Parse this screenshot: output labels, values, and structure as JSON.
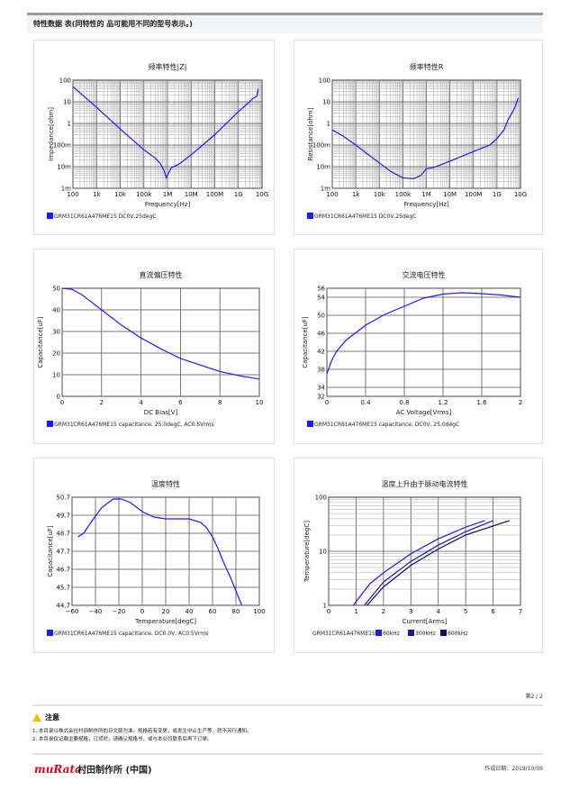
{
  "header": {
    "title": "特性数据 表(同特性的 品可能用不同的型号表示。)"
  },
  "pager": "第2 / 2",
  "notice": {
    "title": "注意",
    "items": [
      "1.  本目录以株式会社村田制作所的日文版为准。规格若有变更，或发生中止生产等，恕不另行通知。",
      "2.  本目录仅记载主要规格，订货时，请确认规格书，或与本公司联系后再下订单。"
    ]
  },
  "footer": {
    "logo": "muRata",
    "company": "村田制作所 (中国)",
    "date": "作成日期：2019/10/09"
  },
  "colors": {
    "curve": "#1a1aff",
    "s2": "#1a1aa0",
    "s3": "#0a0a60",
    "grid": "#888"
  },
  "chart_data": [
    {
      "type": "line",
      "title": "频率特性|Z|",
      "xlabel": "Frequency[Hz]",
      "ylabel": "Impedance[ohm]",
      "xscale": "log",
      "yscale": "log",
      "xlim": [
        100,
        10000000000.0
      ],
      "ylim": [
        0.001,
        100
      ],
      "xticks": [
        "100",
        "1k",
        "10k",
        "100k",
        "1M",
        "10M",
        "100M",
        "1G",
        "10G"
      ],
      "yticks": [
        "1m",
        "10m",
        "100m",
        "1",
        "10",
        "100"
      ],
      "legend": [
        "GRM31CR61A476ME15 DC0V,25degC"
      ],
      "series": [
        {
          "x": [
            100,
            1000.0,
            10000.0,
            100000.0,
            300000.0,
            500000.0,
            700000.0,
            900000.0,
            1200000.0,
            1500000.0,
            3000000.0,
            10000000.0,
            100000000.0,
            1000000000.0,
            3000000000.0,
            4000000000.0,
            6000000000.0,
            7000000000.0
          ],
          "y": [
            50,
            5.5,
            0.55,
            0.06,
            0.025,
            0.014,
            0.007,
            0.003,
            0.006,
            0.009,
            0.013,
            0.035,
            0.3,
            3.5,
            10,
            14,
            18,
            40
          ]
        }
      ]
    },
    {
      "type": "line",
      "title": "频率特性R",
      "xlabel": "Frequency[Hz]",
      "ylabel": "Resistance[ohm]",
      "xscale": "log",
      "yscale": "log",
      "xlim": [
        100,
        10000000000.0
      ],
      "ylim": [
        0.001,
        100
      ],
      "xticks": [
        "100",
        "1k",
        "10k",
        "100k",
        "1M",
        "10M",
        "100M",
        "1G",
        "10G"
      ],
      "yticks": [
        "1m",
        "10m",
        "100m",
        "1",
        "10",
        "100"
      ],
      "legend": [
        "GRM31CR61A476ME15 DC0V,25degC"
      ],
      "series": [
        {
          "x": [
            100,
            300,
            1000.0,
            3000.0,
            10000.0,
            30000.0,
            100000.0,
            300000.0,
            600000.0,
            1000000.0,
            2000000.0,
            10000000.0,
            100000000.0,
            500000000.0,
            1000000000.0,
            2000000000.0,
            3000000000.0,
            5000000000.0,
            6000000000.0,
            8000000000.0
          ],
          "y": [
            0.5,
            0.25,
            0.1,
            0.04,
            0.015,
            0.006,
            0.003,
            0.0028,
            0.004,
            0.008,
            0.009,
            0.018,
            0.05,
            0.1,
            0.2,
            0.5,
            1.5,
            4,
            6,
            15
          ]
        }
      ]
    },
    {
      "type": "line",
      "title": "直流偏压特性",
      "xlabel": "DC Bias[V]",
      "ylabel": "Capacitance[uF]",
      "xlim": [
        0,
        10
      ],
      "ylim": [
        0,
        50
      ],
      "xticks": [
        "0",
        "2",
        "4",
        "6",
        "8",
        "10"
      ],
      "yticks": [
        "0",
        "10",
        "20",
        "30",
        "40",
        "50"
      ],
      "legend": [
        "GRM31CR61A476ME15 capacitance, 25.0degC, AC0.5Vrms"
      ],
      "series": [
        {
          "x": [
            0,
            0.5,
            1,
            2,
            3,
            4,
            5,
            6,
            7,
            8,
            9,
            10
          ],
          "y": [
            50,
            49.5,
            47,
            40,
            33,
            27,
            22,
            17.5,
            14.5,
            11.5,
            9.5,
            8
          ]
        }
      ]
    },
    {
      "type": "line",
      "title": "交流电压特性",
      "xlabel": "AC Voltage[Vrms]",
      "ylabel": "Capacitance[uF]",
      "xlim": [
        0,
        2
      ],
      "ylim": [
        32,
        56
      ],
      "xticks": [
        "0",
        "0.4",
        "0.8",
        "1.2",
        "1.6",
        "2"
      ],
      "yticks": [
        "32",
        "34",
        "38",
        "42",
        "46",
        "50",
        "54",
        "56"
      ],
      "legend": [
        "GRM31CR61A476ME15 capacitance, DC0V, 25.0degC"
      ],
      "series": [
        {
          "x": [
            0,
            0.05,
            0.1,
            0.2,
            0.4,
            0.6,
            0.8,
            1.0,
            1.2,
            1.4,
            1.6,
            1.8,
            2.0
          ],
          "y": [
            37,
            40,
            42,
            44.5,
            47.8,
            50.2,
            52,
            53.8,
            54.7,
            55,
            54.8,
            54.5,
            54
          ]
        }
      ]
    },
    {
      "type": "line",
      "title": "温度特性",
      "xlabel": "Temperature[degC]",
      "ylabel": "Capacitance[uF]",
      "xlim": [
        -60,
        100
      ],
      "ylim": [
        44.7,
        50.7
      ],
      "xticks": [
        "−60",
        "−40",
        "−20",
        "0",
        "20",
        "40",
        "60",
        "80",
        "100"
      ],
      "yticks": [
        "44.7",
        "45.7",
        "46.7",
        "47.7",
        "48.7",
        "49.7",
        "50.7"
      ],
      "legend": [
        "GRM31CR61A476ME15 capacitance, DC0.0V, AC0.5Vrms"
      ],
      "series": [
        {
          "x": [
            -55,
            -50,
            -45,
            -35,
            -25,
            -18,
            -10,
            0,
            10,
            20,
            30,
            40,
            50,
            55,
            60,
            65,
            70,
            75,
            80,
            85
          ],
          "y": [
            48.5,
            48.7,
            49.2,
            50.1,
            50.6,
            50.6,
            50.4,
            49.9,
            49.6,
            49.5,
            49.5,
            49.5,
            49.3,
            49.0,
            48.5,
            47.8,
            47.0,
            46.3,
            45.5,
            44.7
          ]
        }
      ]
    },
    {
      "type": "line",
      "title": "温度上升由于脉动电流特性",
      "xlabel": "Current[Arms]",
      "ylabel": "Temperature[degC]",
      "yscale": "log",
      "xlim": [
        0,
        7
      ],
      "ylim": [
        1,
        100
      ],
      "xticks": [
        "0",
        "1",
        "2",
        "3",
        "4",
        "5",
        "6",
        "7"
      ],
      "yticks": [
        "1",
        "10",
        "100"
      ],
      "legend": [
        "GRM31CR61A476ME15",
        "60kHz",
        "300kHz",
        "600kHz"
      ],
      "series": [
        {
          "name": "60kHz",
          "x": [
            0.9,
            1.5,
            2,
            3,
            4,
            5,
            5.7
          ],
          "y": [
            1,
            2.5,
            4,
            9,
            17,
            28,
            37
          ]
        },
        {
          "name": "300kHz",
          "x": [
            1.3,
            2,
            3,
            4,
            5,
            6
          ],
          "y": [
            1,
            2.7,
            6.5,
            13,
            23,
            37
          ]
        },
        {
          "name": "600kHz",
          "x": [
            1.4,
            2,
            3,
            4,
            5,
            6.6
          ],
          "y": [
            1,
            2.2,
            5.5,
            11,
            20,
            37
          ]
        }
      ]
    }
  ]
}
